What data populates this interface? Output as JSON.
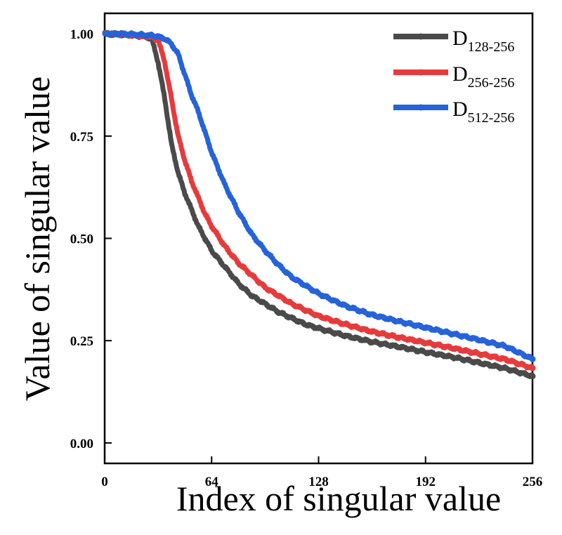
{
  "chart_data": {
    "type": "line",
    "title": "",
    "xlabel": "Index of singular value",
    "ylabel": "Value of singular value",
    "xlim": [
      0,
      256
    ],
    "ylim": [
      -0.05,
      1.05
    ],
    "xticks": [
      0,
      64,
      128,
      192,
      256
    ],
    "xtick_labels": [
      "0",
      "64",
      "128",
      "192",
      "256"
    ],
    "yticks": [
      0.0,
      0.25,
      0.5,
      0.75,
      1.0
    ],
    "ytick_labels": [
      "0.00",
      "0.25",
      "0.50",
      "0.75",
      "1.00"
    ],
    "grid": false,
    "legend_position": "top-right",
    "x": [
      0,
      10,
      20,
      28,
      32,
      36,
      40,
      44,
      48,
      52,
      56,
      60,
      64,
      72,
      80,
      88,
      96,
      104,
      112,
      120,
      128,
      144,
      160,
      176,
      192,
      208,
      224,
      240,
      256
    ],
    "series": [
      {
        "name": "D",
        "name_sub": "128-256",
        "color": "#4a4a4a",
        "values": [
          1.0,
          0.998,
          0.995,
          0.99,
          0.93,
          0.84,
          0.73,
          0.66,
          0.61,
          0.57,
          0.53,
          0.5,
          0.47,
          0.43,
          0.39,
          0.36,
          0.34,
          0.32,
          0.305,
          0.29,
          0.28,
          0.262,
          0.247,
          0.235,
          0.222,
          0.21,
          0.196,
          0.182,
          0.163
        ]
      },
      {
        "name": "D",
        "name_sub": "256-256",
        "color": "#e63b3b",
        "values": [
          1.0,
          0.999,
          0.996,
          0.992,
          0.985,
          0.93,
          0.84,
          0.75,
          0.69,
          0.64,
          0.6,
          0.56,
          0.53,
          0.48,
          0.44,
          0.41,
          0.38,
          0.36,
          0.34,
          0.325,
          0.31,
          0.29,
          0.272,
          0.258,
          0.245,
          0.232,
          0.218,
          0.204,
          0.183
        ]
      },
      {
        "name": "D",
        "name_sub": "512-256",
        "color": "#2563d9",
        "values": [
          1.0,
          1.0,
          0.998,
          0.996,
          0.993,
          0.988,
          0.975,
          0.95,
          0.9,
          0.85,
          0.81,
          0.76,
          0.71,
          0.63,
          0.565,
          0.51,
          0.47,
          0.435,
          0.405,
          0.385,
          0.365,
          0.335,
          0.313,
          0.297,
          0.282,
          0.267,
          0.252,
          0.236,
          0.205
        ]
      }
    ]
  }
}
